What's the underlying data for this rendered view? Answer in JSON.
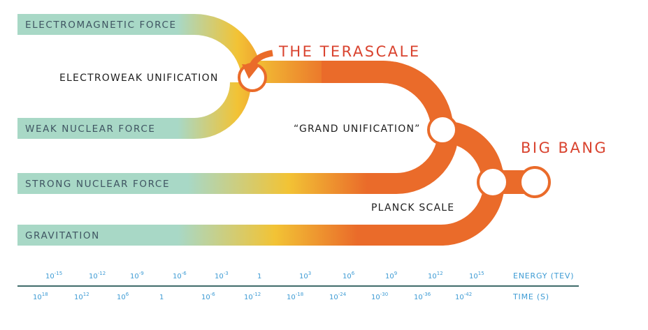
{
  "forces": [
    {
      "name": "ELECTROMAGNETIC FORCE"
    },
    {
      "name": "WEAK NUCLEAR FORCE"
    },
    {
      "name": "STRONG NUCLEAR FORCE"
    },
    {
      "name": "GRAVITATION"
    }
  ],
  "unifications": {
    "electroweak": "ELECTROWEAK UNIFICATION",
    "grand": "“GRAND UNIFICATION”",
    "planck": "PLANCK SCALE"
  },
  "titles": {
    "terascale": "THE TERASCALE",
    "big_bang": "BIG BANG"
  },
  "axis": {
    "energy_label": "ENERGY (TEV)",
    "time_label": "TIME (S)",
    "energy_ticks": [
      {
        "base": "10",
        "exp": "-15"
      },
      {
        "base": "10",
        "exp": "-12"
      },
      {
        "base": "10",
        "exp": "-9"
      },
      {
        "base": "10",
        "exp": "-6"
      },
      {
        "base": "10",
        "exp": "-3"
      },
      {
        "base": "1",
        "exp": ""
      },
      {
        "base": "10",
        "exp": "3"
      },
      {
        "base": "10",
        "exp": "6"
      },
      {
        "base": "10",
        "exp": "9"
      },
      {
        "base": "10",
        "exp": "12"
      },
      {
        "base": "10",
        "exp": "15"
      }
    ],
    "time_ticks": [
      {
        "base": "10",
        "exp": "18"
      },
      {
        "base": "10",
        "exp": "12"
      },
      {
        "base": "10",
        "exp": "6"
      },
      {
        "base": "1",
        "exp": ""
      },
      {
        "base": "10",
        "exp": "-6"
      },
      {
        "base": "10",
        "exp": "-12"
      },
      {
        "base": "10",
        "exp": "-18"
      },
      {
        "base": "10",
        "exp": "-24"
      },
      {
        "base": "10",
        "exp": "-30"
      },
      {
        "base": "10",
        "exp": "-36"
      },
      {
        "base": "10",
        "exp": "-42"
      }
    ]
  },
  "colors": {
    "teal": "#a8d8c6",
    "yellow": "#f2c335",
    "orange": "#ea6b2a",
    "title_red": "#d9432f",
    "axis_blue": "#3d9bd4",
    "axis_line": "#3f6b6a"
  }
}
